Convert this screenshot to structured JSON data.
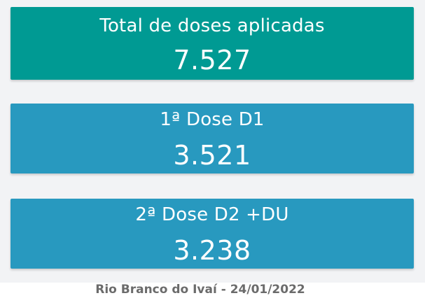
{
  "colors": {
    "total_card": "#009a93",
    "d1_card": "#2899bf",
    "d2_card": "#2899bf",
    "text": "#ffffff",
    "footer_text": "#6b6b6b",
    "background": "#f2f3f5"
  },
  "cards": [
    {
      "label": "Total de doses aplicadas",
      "value": "7.527"
    },
    {
      "label": "1ª Dose D1",
      "value": "3.521"
    },
    {
      "label": "2ª Dose D2 +DU",
      "value": "3.238"
    }
  ],
  "footer": {
    "text": "Rio Branco do Ivaí - 24/01/2022"
  }
}
